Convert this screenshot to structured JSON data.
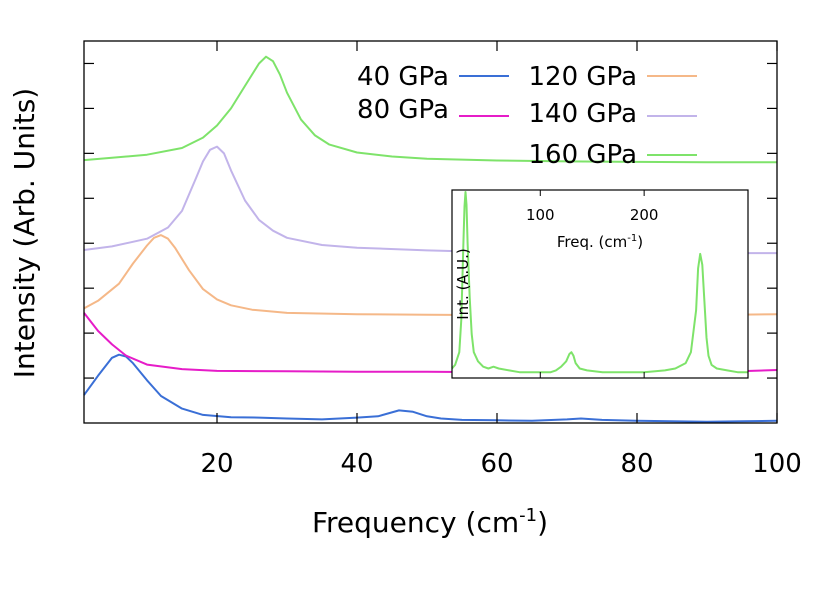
{
  "chart_data": {
    "type": "line",
    "title": "",
    "xlabel": "Frequency (cm",
    "xlabel_sup": "-1",
    "xlabel_end": ")",
    "ylabel": "Intensity (Arb. Units)",
    "xlim": [
      1,
      100
    ],
    "ylim": [
      0,
      8.5
    ],
    "x_ticks": [
      20,
      40,
      60,
      80,
      100
    ],
    "x_tick_labels": [
      "20",
      "40",
      "60",
      "80",
      "100"
    ],
    "grid": false,
    "legend_position": "top-right",
    "series": [
      {
        "name": "40 GPa",
        "color": "#3a6fd6",
        "x": [
          1,
          3,
          5,
          6,
          7,
          8,
          10,
          12,
          15,
          18,
          22,
          26,
          30,
          35,
          40,
          43,
          46,
          48,
          50,
          52,
          55,
          60,
          65,
          70,
          72,
          75,
          80,
          85,
          90,
          95,
          100
        ],
        "y": [
          0.62,
          1.05,
          1.45,
          1.52,
          1.48,
          1.33,
          0.95,
          0.6,
          0.32,
          0.18,
          0.13,
          0.12,
          0.1,
          0.08,
          0.12,
          0.15,
          0.28,
          0.25,
          0.15,
          0.1,
          0.07,
          0.06,
          0.05,
          0.08,
          0.1,
          0.07,
          0.05,
          0.04,
          0.03,
          0.04,
          0.05
        ]
      },
      {
        "name": "80 GPa",
        "color": "#e61cc8",
        "x": [
          1,
          3,
          5,
          7,
          10,
          15,
          20,
          30,
          40,
          50,
          60,
          70,
          80,
          90,
          100
        ],
        "y": [
          2.45,
          2.05,
          1.75,
          1.5,
          1.3,
          1.2,
          1.16,
          1.15,
          1.14,
          1.14,
          1.13,
          1.13,
          1.13,
          1.13,
          1.18
        ]
      },
      {
        "name": "120 GPa",
        "color": "#f5b888",
        "x": [
          1,
          3,
          6,
          8,
          10,
          11,
          12,
          13,
          14,
          16,
          18,
          20,
          22,
          25,
          30,
          40,
          50,
          60,
          70,
          80,
          90,
          100
        ],
        "y": [
          2.55,
          2.72,
          3.1,
          3.55,
          3.95,
          4.12,
          4.18,
          4.1,
          3.9,
          3.4,
          2.98,
          2.75,
          2.62,
          2.52,
          2.45,
          2.42,
          2.41,
          2.4,
          2.4,
          2.4,
          2.4,
          2.42
        ]
      },
      {
        "name": "140 GPa",
        "color": "#c2b4ea",
        "x": [
          1,
          5,
          10,
          13,
          15,
          17,
          18,
          19,
          20,
          21,
          22,
          24,
          26,
          28,
          30,
          35,
          40,
          50,
          60,
          70,
          80,
          90,
          100
        ],
        "y": [
          3.85,
          3.93,
          4.1,
          4.35,
          4.72,
          5.45,
          5.82,
          6.08,
          6.15,
          6.0,
          5.62,
          4.95,
          4.52,
          4.28,
          4.12,
          3.96,
          3.9,
          3.84,
          3.8,
          3.79,
          3.78,
          3.78,
          3.78
        ]
      },
      {
        "name": "160 GPa",
        "color": "#7ee36a",
        "x": [
          1,
          5,
          10,
          15,
          18,
          20,
          22,
          24,
          26,
          27,
          28,
          29,
          30,
          32,
          34,
          36,
          40,
          45,
          50,
          60,
          70,
          80,
          90,
          100
        ],
        "y": [
          5.85,
          5.9,
          5.97,
          6.12,
          6.35,
          6.62,
          7.0,
          7.5,
          8.0,
          8.15,
          8.05,
          7.75,
          7.35,
          6.75,
          6.4,
          6.2,
          6.02,
          5.93,
          5.88,
          5.84,
          5.82,
          5.81,
          5.8,
          5.8
        ]
      }
    ],
    "inset": {
      "xlabel": "Freq. (cm",
      "xlabel_sup": "-1",
      "xlabel_end": ")",
      "ylabel": "Int. (A.U.)",
      "xlim": [
        15,
        300
      ],
      "ylim": [
        0,
        1
      ],
      "x_ticks": [
        100,
        200
      ],
      "x_tick_labels": [
        "100",
        "200"
      ],
      "series": {
        "name": "160 GPa",
        "color": "#7ee36a",
        "x": [
          15,
          18,
          22,
          24,
          26,
          27,
          28,
          29,
          30,
          32,
          34,
          36,
          40,
          45,
          50,
          55,
          60,
          70,
          80,
          90,
          100,
          110,
          115,
          120,
          125,
          128,
          130,
          132,
          134,
          138,
          145,
          160,
          180,
          200,
          220,
          230,
          240,
          245,
          250,
          252,
          254,
          256,
          258,
          260,
          262,
          265,
          270,
          280,
          290,
          300
        ],
        "y": [
          0.03,
          0.05,
          0.12,
          0.3,
          0.72,
          0.92,
          1.0,
          0.93,
          0.72,
          0.42,
          0.22,
          0.12,
          0.07,
          0.04,
          0.03,
          0.04,
          0.03,
          0.02,
          0.01,
          0.01,
          0.01,
          0.01,
          0.02,
          0.04,
          0.07,
          0.11,
          0.12,
          0.1,
          0.06,
          0.03,
          0.02,
          0.01,
          0.01,
          0.01,
          0.02,
          0.03,
          0.06,
          0.12,
          0.35,
          0.58,
          0.66,
          0.6,
          0.4,
          0.2,
          0.1,
          0.05,
          0.03,
          0.02,
          0.01,
          0.01
        ]
      }
    }
  }
}
